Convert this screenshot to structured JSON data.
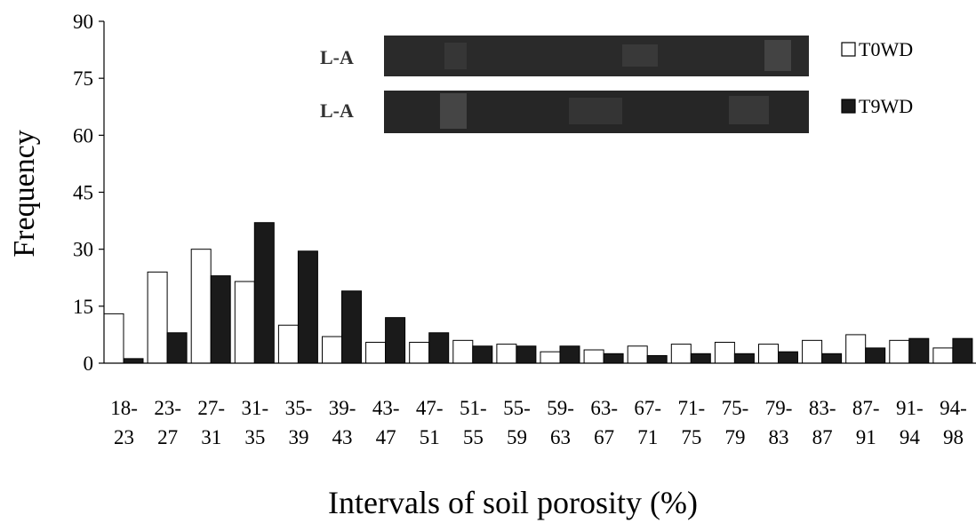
{
  "chart_data": {
    "type": "bar",
    "xlabel": "Intervals of soil porosity (%)",
    "ylabel": "Frequency",
    "ylim": [
      0,
      90
    ],
    "yticks": [
      0,
      15,
      30,
      45,
      60,
      75,
      90
    ],
    "categories": [
      {
        "top": "18-",
        "bottom": "23"
      },
      {
        "top": "23-",
        "bottom": "27"
      },
      {
        "top": "27-",
        "bottom": "31"
      },
      {
        "top": "31-",
        "bottom": "35"
      },
      {
        "top": "35-",
        "bottom": "39"
      },
      {
        "top": "39-",
        "bottom": "43"
      },
      {
        "top": "43-",
        "bottom": "47"
      },
      {
        "top": "47-",
        "bottom": "51"
      },
      {
        "top": "51-",
        "bottom": "55"
      },
      {
        "top": "55-",
        "bottom": "59"
      },
      {
        "top": "59-",
        "bottom": "63"
      },
      {
        "top": "63-",
        "bottom": "67"
      },
      {
        "top": "67-",
        "bottom": "71"
      },
      {
        "top": "71-",
        "bottom": "75"
      },
      {
        "top": "75-",
        "bottom": "79"
      },
      {
        "top": "79-",
        "bottom": "83"
      },
      {
        "top": "83-",
        "bottom": "87"
      },
      {
        "top": "87-",
        "bottom": "91"
      },
      {
        "top": "91-",
        "bottom": "94"
      },
      {
        "top": "94-",
        "bottom": "98"
      }
    ],
    "series": [
      {
        "name": "T0WD",
        "fill": "#ffffff",
        "values": [
          13,
          24,
          30,
          21.5,
          10,
          7,
          5.5,
          5.5,
          6,
          5,
          3,
          3.5,
          4.5,
          5,
          5.5,
          5,
          6,
          7.5,
          6,
          4
        ]
      },
      {
        "name": "T9WD",
        "fill": "#1a1a1a",
        "values": [
          1.2,
          8,
          23,
          37,
          29.5,
          19,
          12,
          8,
          4.5,
          4.5,
          4.5,
          2.5,
          2,
          2.5,
          2.5,
          3,
          2.5,
          4,
          6.5,
          6.5
        ]
      }
    ],
    "legend_position": "top-right",
    "grid": false
  },
  "inset": {
    "labels": [
      "L-A",
      "L-A"
    ]
  }
}
